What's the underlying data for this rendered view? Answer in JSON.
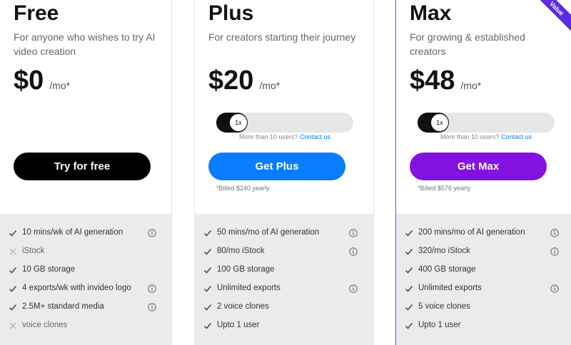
{
  "plans": [
    {
      "name": "Free",
      "description": "For anyone who wishes to try AI video creation",
      "price": "$0",
      "period": "/mo*",
      "button": "Try for free",
      "color": "#000000",
      "features": [
        {
          "text": "10 mins/wk of AI generation",
          "included": true,
          "info": true
        },
        {
          "text": "iStock",
          "included": false,
          "info": false
        },
        {
          "text": "10 GB storage",
          "included": true,
          "info": false
        },
        {
          "text": "4 exports/wk with invideo logo",
          "included": true,
          "info": true
        },
        {
          "text": "2.5M+ standard media",
          "included": true,
          "info": true
        },
        {
          "text": "voice clones",
          "included": false,
          "info": false
        }
      ]
    },
    {
      "name": "Plus",
      "description": "For creators starting their journey",
      "price": "$20",
      "period": "/mo*",
      "toggle": "1x",
      "contact_prompt": "More than 10 users?",
      "contact_link": "Contact us",
      "button": "Get Plus",
      "color": "#0a7cff",
      "billing": "*Billed $240 yearly",
      "features": [
        {
          "text": "50 mins/mo of AI generation",
          "included": true,
          "info": true
        },
        {
          "text": "80/mo iStock",
          "included": true,
          "info": true
        },
        {
          "text": "100 GB storage",
          "included": true,
          "info": false
        },
        {
          "text": "Unlimited exports",
          "included": true,
          "info": true
        },
        {
          "text": "2 voice clones",
          "included": true,
          "info": false
        },
        {
          "text": "Upto 1 user",
          "included": true,
          "info": false
        }
      ]
    },
    {
      "name": "Max",
      "description": "For growing & established creators",
      "price": "$48",
      "period": "/mo*",
      "toggle": "1x",
      "contact_prompt": "More than 10 users?",
      "contact_link": "Contact us",
      "button": "Get Max",
      "color": "#8312e0",
      "billing": "*Billed $576 yearly",
      "badge": "Value",
      "features": [
        {
          "text": "200 mins/mo of AI generation",
          "included": true,
          "info": true
        },
        {
          "text": "320/mo iStock",
          "included": true,
          "info": true
        },
        {
          "text": "400 GB storage",
          "included": true,
          "info": false
        },
        {
          "text": "Unlimited exports",
          "included": true,
          "info": true
        },
        {
          "text": "5 voice clones",
          "included": true,
          "info": false
        },
        {
          "text": "Upto 1 user",
          "included": true,
          "info": false
        }
      ]
    }
  ]
}
